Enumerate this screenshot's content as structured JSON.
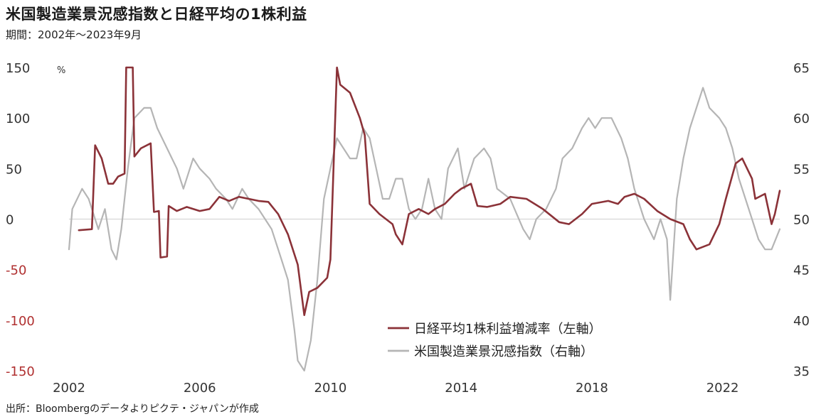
{
  "header": {
    "title": "米国製造業景況感指数と日経平均の1株利益",
    "subtitle": "期間：2002年～2023年9月"
  },
  "footer": {
    "source": "出所：Bloombergのデータよりピクテ・ジャパンが作成"
  },
  "chart_data": {
    "type": "line",
    "xlabel": "",
    "left_axis": {
      "range": [
        -150,
        150
      ],
      "ticks": [
        "150",
        "100",
        "50",
        "0",
        "-50",
        "-100",
        "-150"
      ],
      "tick_values": [
        150,
        100,
        50,
        0,
        -50,
        -100,
        -150
      ],
      "unit": "%"
    },
    "right_axis": {
      "range": [
        35,
        65
      ],
      "ticks": [
        "65",
        "60",
        "55",
        "50",
        "45",
        "40",
        "35"
      ],
      "tick_values": [
        65,
        60,
        55,
        50,
        45,
        40,
        35
      ]
    },
    "x_ticks": [
      "2002",
      "2006",
      "2010",
      "2014",
      "2018",
      "2022"
    ],
    "x_tick_values": [
      2002,
      2006,
      2010,
      2014,
      2018,
      2022
    ],
    "x_range": [
      2002,
      2023.75
    ],
    "zero_line": true,
    "legend_position": "bottom-center",
    "series": [
      {
        "name": "日経平均1株利益増減率（左軸）",
        "axis": "left",
        "color": "#8b3238",
        "points": [
          [
            2002.3,
            -11
          ],
          [
            2002.7,
            -10
          ],
          [
            2002.8,
            73
          ],
          [
            2003.0,
            60
          ],
          [
            2003.2,
            35
          ],
          [
            2003.35,
            35
          ],
          [
            2003.5,
            42
          ],
          [
            2003.7,
            45
          ],
          [
            2003.75,
            150
          ],
          [
            2003.95,
            150
          ],
          [
            2004.0,
            62
          ],
          [
            2004.2,
            70
          ],
          [
            2004.5,
            75
          ],
          [
            2004.6,
            7
          ],
          [
            2004.75,
            8
          ],
          [
            2004.8,
            -38
          ],
          [
            2005.0,
            -37
          ],
          [
            2005.05,
            13
          ],
          [
            2005.3,
            8
          ],
          [
            2005.6,
            12
          ],
          [
            2006.0,
            8
          ],
          [
            2006.3,
            10
          ],
          [
            2006.6,
            22
          ],
          [
            2006.9,
            18
          ],
          [
            2007.2,
            22
          ],
          [
            2007.5,
            20
          ],
          [
            2007.8,
            18
          ],
          [
            2008.1,
            17
          ],
          [
            2008.4,
            5
          ],
          [
            2008.7,
            -15
          ],
          [
            2009.0,
            -45
          ],
          [
            2009.2,
            -95
          ],
          [
            2009.35,
            -72
          ],
          [
            2009.6,
            -68
          ],
          [
            2009.9,
            -58
          ],
          [
            2010.0,
            -40
          ],
          [
            2010.2,
            150
          ],
          [
            2010.3,
            133
          ],
          [
            2010.6,
            125
          ],
          [
            2010.9,
            100
          ],
          [
            2011.05,
            83
          ],
          [
            2011.2,
            15
          ],
          [
            2011.5,
            5
          ],
          [
            2011.9,
            -5
          ],
          [
            2012.0,
            -15
          ],
          [
            2012.2,
            -25
          ],
          [
            2012.4,
            5
          ],
          [
            2012.7,
            10
          ],
          [
            2013.0,
            5
          ],
          [
            2013.2,
            10
          ],
          [
            2013.5,
            15
          ],
          [
            2013.8,
            25
          ],
          [
            2014.0,
            30
          ],
          [
            2014.3,
            35
          ],
          [
            2014.5,
            13
          ],
          [
            2014.8,
            12
          ],
          [
            2015.2,
            15
          ],
          [
            2015.5,
            22
          ],
          [
            2016.0,
            20
          ],
          [
            2016.5,
            10
          ],
          [
            2017.0,
            -3
          ],
          [
            2017.3,
            -5
          ],
          [
            2017.7,
            5
          ],
          [
            2018.0,
            15
          ],
          [
            2018.5,
            18
          ],
          [
            2018.8,
            15
          ],
          [
            2019.0,
            22
          ],
          [
            2019.3,
            25
          ],
          [
            2019.6,
            20
          ],
          [
            2020.0,
            8
          ],
          [
            2020.4,
            0
          ],
          [
            2020.8,
            -5
          ],
          [
            2021.0,
            -20
          ],
          [
            2021.2,
            -30
          ],
          [
            2021.6,
            -25
          ],
          [
            2021.9,
            -5
          ],
          [
            2022.1,
            20
          ],
          [
            2022.4,
            55
          ],
          [
            2022.6,
            60
          ],
          [
            2022.9,
            40
          ],
          [
            2023.0,
            20
          ],
          [
            2023.3,
            25
          ],
          [
            2023.5,
            -5
          ],
          [
            2023.6,
            5
          ],
          [
            2023.75,
            28
          ]
        ]
      },
      {
        "name": "米国製造業景況感指数（右軸）",
        "axis": "right",
        "color": "#b5b5b5",
        "points": [
          [
            2002.0,
            47
          ],
          [
            2002.1,
            51
          ],
          [
            2002.4,
            53
          ],
          [
            2002.6,
            52
          ],
          [
            2002.8,
            50
          ],
          [
            2002.9,
            49
          ],
          [
            2003.1,
            51
          ],
          [
            2003.3,
            47
          ],
          [
            2003.45,
            46
          ],
          [
            2003.6,
            49
          ],
          [
            2003.8,
            55
          ],
          [
            2004.0,
            60
          ],
          [
            2004.3,
            61
          ],
          [
            2004.5,
            61
          ],
          [
            2004.7,
            59
          ],
          [
            2005.0,
            57
          ],
          [
            2005.3,
            55
          ],
          [
            2005.5,
            53
          ],
          [
            2005.8,
            56
          ],
          [
            2006.0,
            55
          ],
          [
            2006.3,
            54
          ],
          [
            2006.5,
            53
          ],
          [
            2006.8,
            52
          ],
          [
            2007.0,
            51
          ],
          [
            2007.3,
            53
          ],
          [
            2007.5,
            52
          ],
          [
            2007.8,
            51
          ],
          [
            2008.0,
            50
          ],
          [
            2008.2,
            49
          ],
          [
            2008.5,
            46
          ],
          [
            2008.7,
            44
          ],
          [
            2008.9,
            39
          ],
          [
            2009.0,
            36
          ],
          [
            2009.2,
            35
          ],
          [
            2009.4,
            38
          ],
          [
            2009.6,
            44
          ],
          [
            2009.8,
            52
          ],
          [
            2010.0,
            55
          ],
          [
            2010.2,
            58
          ],
          [
            2010.4,
            57
          ],
          [
            2010.6,
            56
          ],
          [
            2010.8,
            56
          ],
          [
            2011.0,
            59
          ],
          [
            2011.2,
            58
          ],
          [
            2011.4,
            55
          ],
          [
            2011.6,
            52
          ],
          [
            2011.8,
            52
          ],
          [
            2012.0,
            54
          ],
          [
            2012.2,
            54
          ],
          [
            2012.4,
            51
          ],
          [
            2012.6,
            50
          ],
          [
            2012.8,
            51
          ],
          [
            2013.0,
            54
          ],
          [
            2013.2,
            51
          ],
          [
            2013.4,
            50
          ],
          [
            2013.6,
            55
          ],
          [
            2013.9,
            57
          ],
          [
            2014.1,
            53
          ],
          [
            2014.4,
            56
          ],
          [
            2014.7,
            57
          ],
          [
            2014.9,
            56
          ],
          [
            2015.1,
            53
          ],
          [
            2015.5,
            52
          ],
          [
            2015.9,
            49
          ],
          [
            2016.1,
            48
          ],
          [
            2016.3,
            50
          ],
          [
            2016.6,
            51
          ],
          [
            2016.9,
            53
          ],
          [
            2017.1,
            56
          ],
          [
            2017.4,
            57
          ],
          [
            2017.7,
            59
          ],
          [
            2017.9,
            60
          ],
          [
            2018.1,
            59
          ],
          [
            2018.3,
            60
          ],
          [
            2018.6,
            60
          ],
          [
            2018.9,
            58
          ],
          [
            2019.1,
            56
          ],
          [
            2019.3,
            53
          ],
          [
            2019.6,
            50
          ],
          [
            2019.9,
            48
          ],
          [
            2020.1,
            50
          ],
          [
            2020.3,
            48
          ],
          [
            2020.4,
            42
          ],
          [
            2020.6,
            52
          ],
          [
            2020.8,
            56
          ],
          [
            2021.0,
            59
          ],
          [
            2021.2,
            61
          ],
          [
            2021.4,
            63
          ],
          [
            2021.6,
            61
          ],
          [
            2021.9,
            60
          ],
          [
            2022.1,
            59
          ],
          [
            2022.3,
            57
          ],
          [
            2022.5,
            54
          ],
          [
            2022.7,
            52
          ],
          [
            2022.9,
            50
          ],
          [
            2023.1,
            48
          ],
          [
            2023.3,
            47
          ],
          [
            2023.5,
            47
          ],
          [
            2023.75,
            49
          ]
        ]
      }
    ]
  }
}
